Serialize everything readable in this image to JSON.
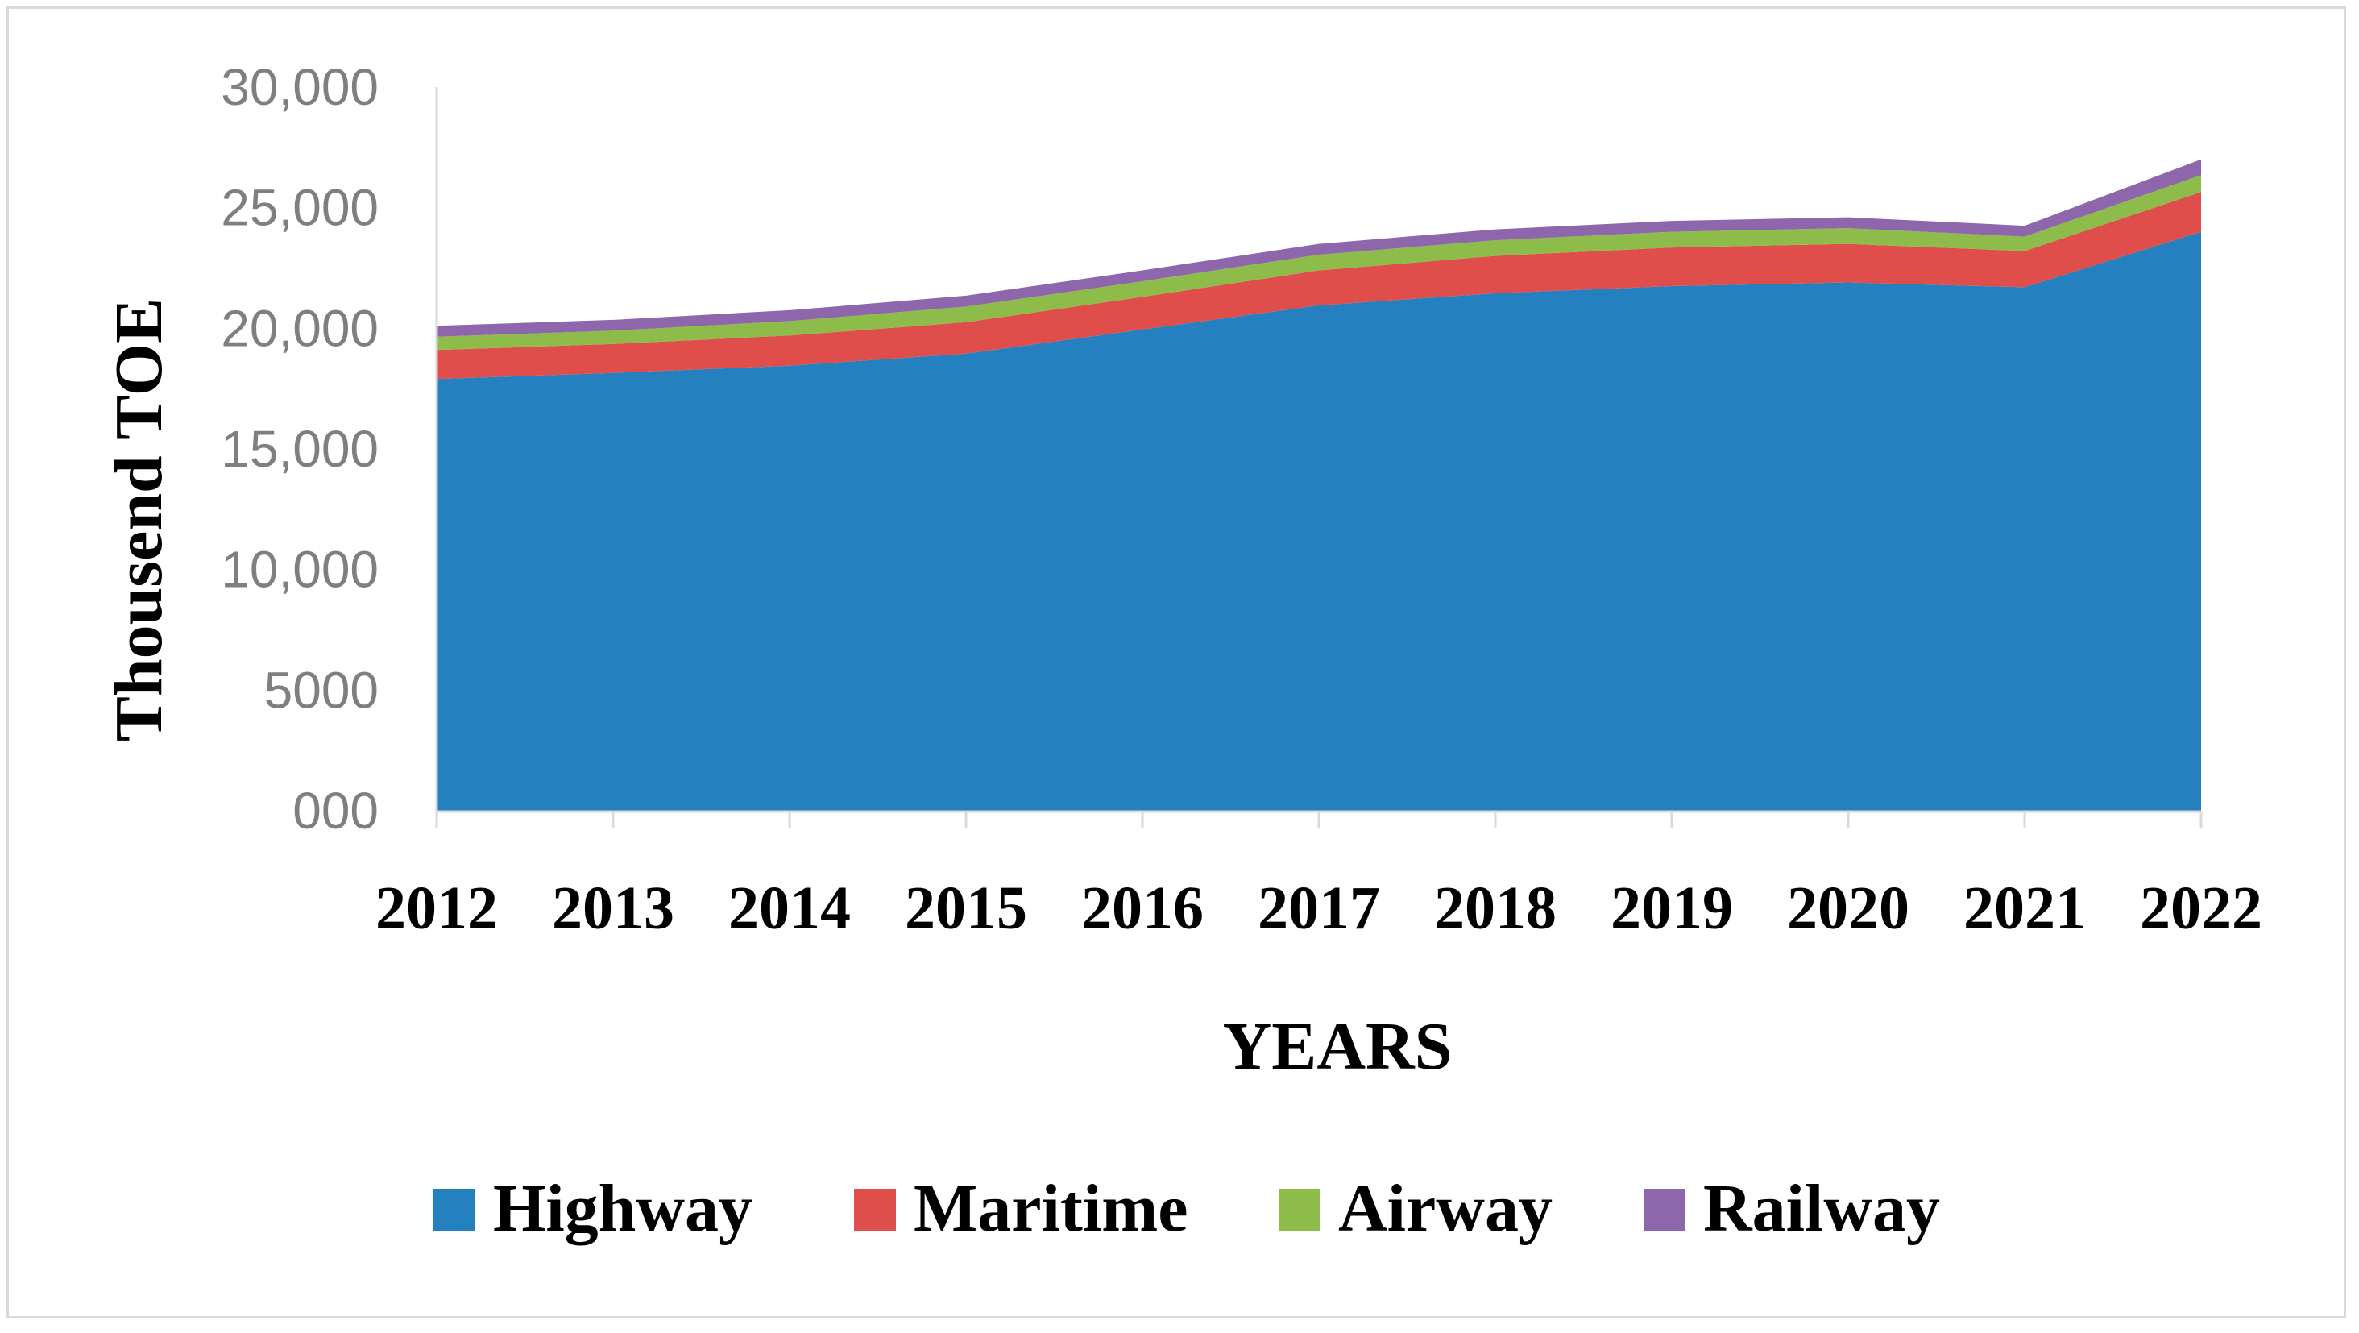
{
  "chart_data": {
    "type": "area",
    "stacked": true,
    "title": "",
    "xlabel": "YEARS",
    "ylabel": "Thousend TOE",
    "x": [
      2012,
      2013,
      2014,
      2015,
      2016,
      2017,
      2018,
      2019,
      2020,
      2021,
      2022
    ],
    "x_tick_labels": [
      "2012",
      "2013",
      "2014",
      "2015",
      "2016",
      "2017",
      "2018",
      "2019",
      "2020",
      "2021",
      "2022"
    ],
    "ylim": [
      0,
      30000
    ],
    "y_ticks": [
      0,
      5000,
      10000,
      15000,
      20000,
      25000,
      30000
    ],
    "y_tick_labels": [
      "000",
      "5000",
      "10,000",
      "15,000",
      "20,000",
      "25,000",
      "30,000"
    ],
    "grid": false,
    "legend_position": "bottom",
    "series": [
      {
        "name": "Highway",
        "color": "#2580bf",
        "values": [
          17900,
          18150,
          18450,
          18950,
          19950,
          20950,
          21450,
          21750,
          21900,
          21700,
          24000
        ]
      },
      {
        "name": "Maritime",
        "color": "#e04e4b",
        "values": [
          1200,
          1200,
          1250,
          1300,
          1350,
          1450,
          1550,
          1600,
          1600,
          1500,
          1650
        ]
      },
      {
        "name": "Airway",
        "color": "#8dbc4a",
        "values": [
          550,
          550,
          600,
          650,
          650,
          650,
          650,
          650,
          650,
          600,
          700
        ]
      },
      {
        "name": "Railway",
        "color": "#8d66ab",
        "values": [
          450,
          450,
          450,
          450,
          450,
          450,
          450,
          450,
          450,
          450,
          650
        ]
      }
    ]
  }
}
